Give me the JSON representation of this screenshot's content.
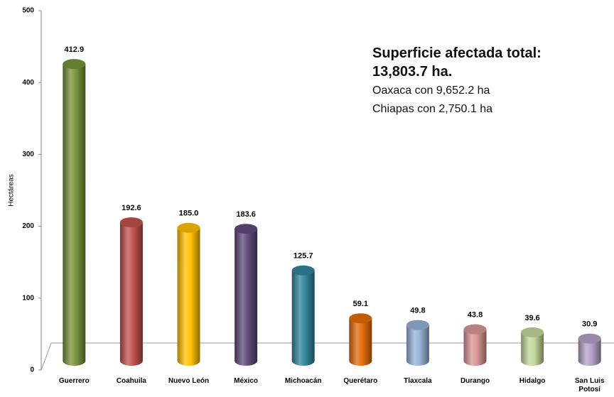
{
  "chart_data": {
    "type": "bar",
    "categories": [
      "Guerrero",
      "Coahuila",
      "Nuevo León",
      "México",
      "Michoacán",
      "Querétaro",
      "Tlaxcala",
      "Durango",
      "Hidalgo",
      "San Luis Potosí"
    ],
    "values": [
      412.9,
      192.6,
      185.0,
      183.6,
      125.7,
      59.1,
      49.8,
      43.8,
      39.6,
      30.9
    ],
    "value_labels": [
      "412.9",
      "192.6",
      "185.0",
      "183.6",
      "125.7",
      "59.1",
      "49.8",
      "43.8",
      "39.6",
      "30.9"
    ],
    "colors": [
      "#77933c",
      "#c0504d",
      "#ffc000",
      "#604a7b",
      "#31859c",
      "#e46c0a",
      "#95b3d7",
      "#d99694",
      "#c3d69b",
      "#b3a2c7"
    ],
    "ylabel": "Hectáreas",
    "ylim": [
      0,
      500
    ],
    "yticks": [
      0,
      100,
      200,
      300,
      400,
      500
    ],
    "grid": false,
    "annotations": [
      "Superficie afectada total:",
      "13,803.7 ha.",
      "Oaxaca con 9,652.2 ha",
      "Chiapas con 2,750.1 ha"
    ]
  }
}
